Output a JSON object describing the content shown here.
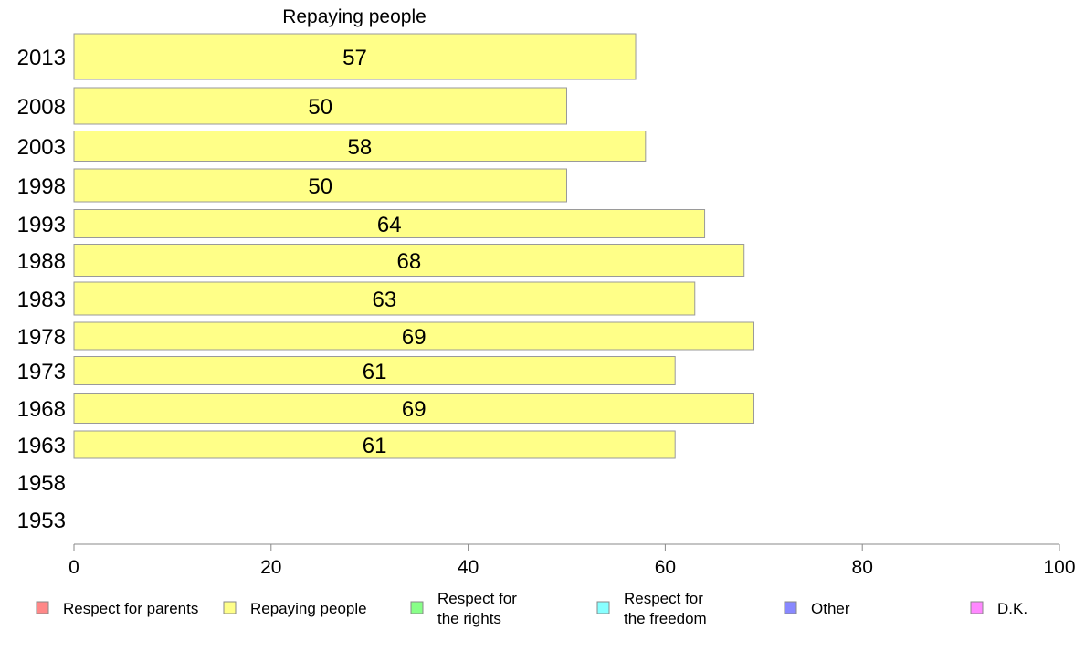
{
  "chart_data": {
    "type": "bar",
    "orientation": "horizontal",
    "title": "Repaying people",
    "categories": [
      "2013",
      "2008",
      "2003",
      "1998",
      "1993",
      "1988",
      "1983",
      "1978",
      "1973",
      "1968",
      "1963",
      "1958",
      "1953"
    ],
    "series": [
      {
        "name": "Repaying people",
        "color": "#ffff88",
        "values": [
          57,
          50,
          58,
          50,
          64,
          68,
          63,
          69,
          61,
          69,
          61,
          null,
          null
        ]
      }
    ],
    "xlim": [
      0,
      100
    ],
    "xticks": [
      "0",
      "20",
      "40",
      "60",
      "80",
      "100"
    ],
    "grid": false,
    "legend_position": "bottom",
    "legend": [
      {
        "label": [
          "Respect for parents"
        ],
        "color": "#ff8888"
      },
      {
        "label": [
          "Repaying people"
        ],
        "color": "#ffff88"
      },
      {
        "label": [
          "Respect for",
          "the rights"
        ],
        "color": "#88ff88"
      },
      {
        "label": [
          "Respect for",
          "the freedom"
        ],
        "color": "#88ffff"
      },
      {
        "label": [
          "Other"
        ],
        "color": "#8888ff"
      },
      {
        "label": [
          "D.K."
        ],
        "color": "#ff88ff"
      }
    ]
  }
}
